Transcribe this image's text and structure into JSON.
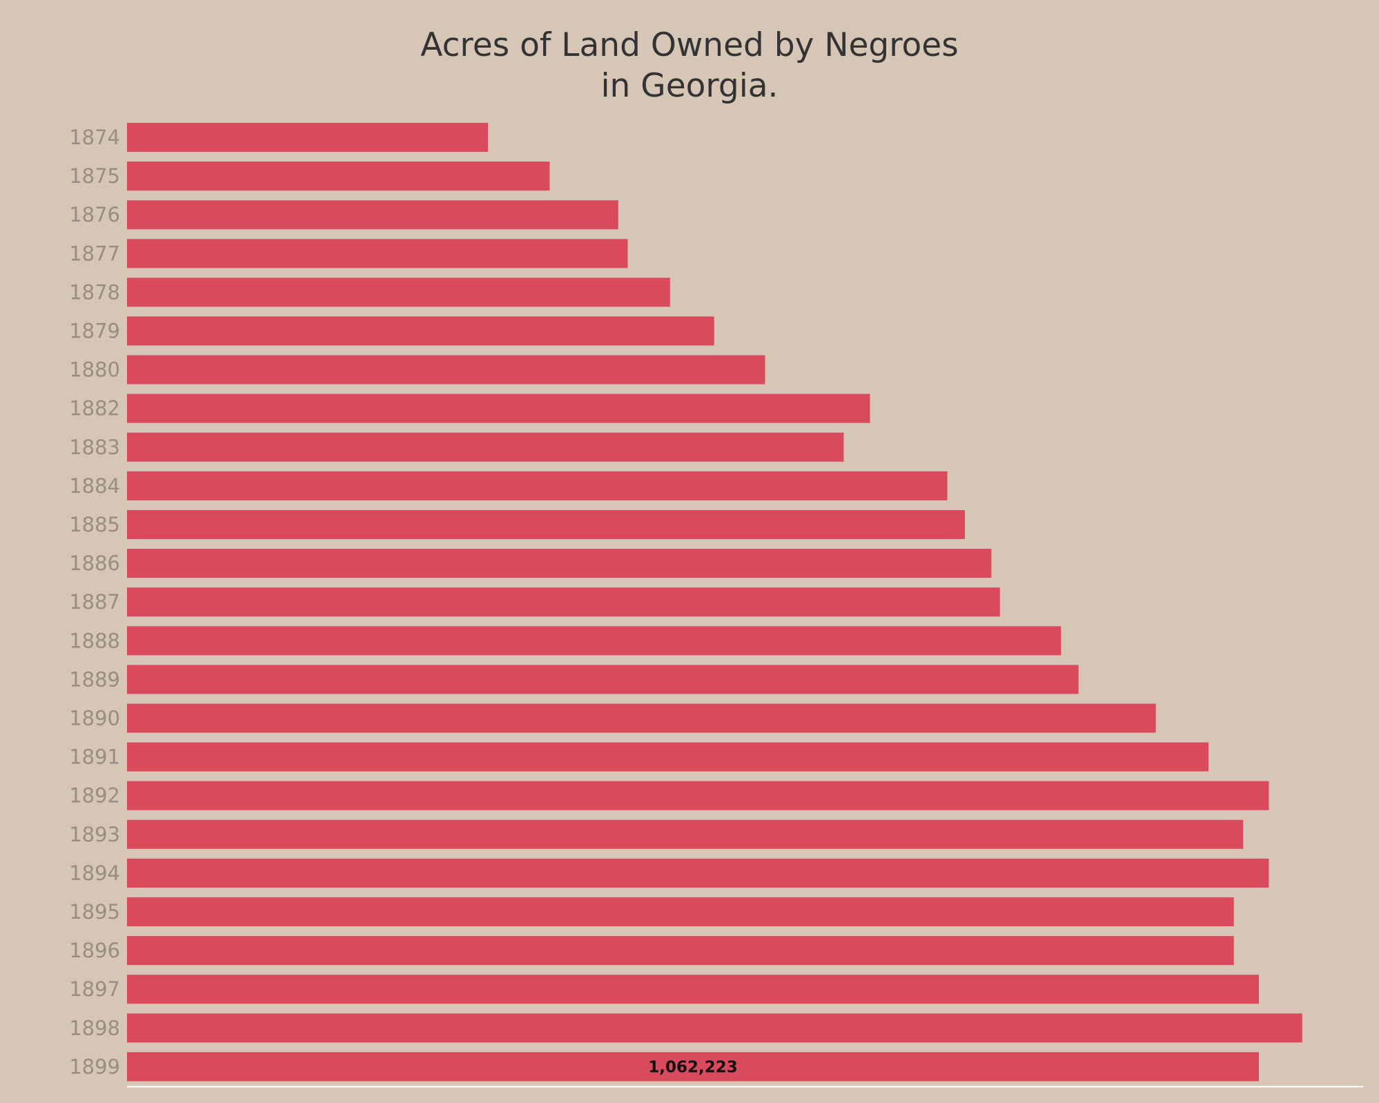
{
  "chart_data": {
    "type": "bar",
    "orientation": "horizontal",
    "title_lines": [
      "Acres of Land Owned by Negroes",
      "in Georgia."
    ],
    "categories": [
      "1874",
      "1875",
      "1876",
      "1877",
      "1878",
      "1879",
      "1880",
      "1882",
      "1883",
      "1884",
      "1885",
      "1886",
      "1887",
      "1888",
      "1889",
      "1890",
      "1891",
      "1892",
      "1893",
      "1894",
      "1895",
      "1896",
      "1897",
      "1898",
      "1899"
    ],
    "values": [
      338769,
      396658,
      461001,
      469866,
      509606,
      551001,
      598756,
      697215,
      672589,
      769783,
      786269,
      811166,
      819169,
      876466,
      892903,
      965456,
      1014898,
      1071538,
      1047441,
      1071538,
      1038709,
      1038709,
      1062223,
      1102800,
      1062223
    ],
    "data_labels": [
      {
        "category": "1899",
        "text": "1,062,223"
      }
    ],
    "xlim": [
      0,
      1160000
    ],
    "xlabel": "",
    "ylabel": "",
    "grid": false,
    "legend": "none",
    "colors": {
      "background": "#d6c6b6",
      "bar": "#d84a5c",
      "title": "#333333",
      "tick_label": "#9a8c85",
      "data_label": "#111111",
      "axis_line": "#ffffff"
    }
  }
}
